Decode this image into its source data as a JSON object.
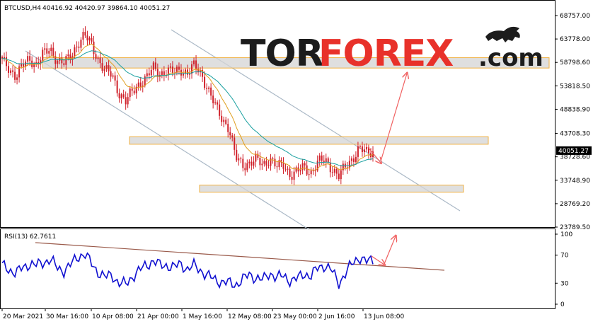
{
  "header": {
    "symbol": "BTCUSD,H4",
    "ohlc": "40416.92 40420.97 39864.10 40051.27",
    "rsi_label": "RSI(13) 62.7611"
  },
  "brand": {
    "part1": "TOR",
    "part2": "FOREX",
    "part3": ".com",
    "icon": "bull-icon"
  },
  "colors": {
    "candle": "#d0202a",
    "ema_fast": "#e0a020",
    "ema_slow": "#1aa0a0",
    "channel": "#aab8c6",
    "zone_fill": "#d4d4d4",
    "zone_border": "#f0b040",
    "rsi": "#1010d0",
    "rsi_trend": "#9a5a4a",
    "arrow": "#f06060",
    "price_box": "#000000"
  },
  "chart_data": [
    {
      "type": "candlestick",
      "title": "BTCUSD,H4",
      "ylim": [
        23789.5,
        71000
      ],
      "y_ticks": [
        "68757.00",
        "63778.00",
        "58798.60",
        "53818.50",
        "48838.90",
        "43708.30",
        "38728.60",
        "33748.90",
        "28769.20",
        "23789.50"
      ],
      "y_tick_values": [
        68757.0,
        63778.0,
        58798.6,
        53818.5,
        48838.9,
        43708.3,
        38728.6,
        33748.9,
        28769.2,
        23789.5
      ],
      "current_price": "40051.27",
      "current_price_value": 40051.27,
      "x_ticks": [
        "20 Mar 2021",
        "30 Mar 16:00",
        "10 Apr 08:00",
        "21 Apr 00:00",
        "1 May 16:00",
        "12 May 08:00",
        "23 May 00:00",
        "2 Jun 16:00",
        "13 Jun 08:00"
      ],
      "close_series": [
        59000,
        57500,
        56000,
        58000,
        59500,
        58500,
        60500,
        61500,
        59500,
        58500,
        60000,
        63000,
        64500,
        62500,
        59500,
        57000,
        56000,
        52500,
        50500,
        52500,
        54500,
        55500,
        57500,
        56500,
        57000,
        56500,
        57500,
        56500,
        58000,
        56500,
        53000,
        49500,
        47000,
        45000,
        38500,
        37000,
        37500,
        38000,
        37000,
        38500,
        36500,
        37000,
        35000,
        35500,
        36500,
        35500,
        37500,
        38000,
        36500,
        34500,
        36500,
        38500,
        40500,
        39500,
        40000
      ],
      "support_resistance_zones": [
        {
          "top": 59800,
          "bottom": 57600
        },
        {
          "top": 43000,
          "bottom": 41400
        },
        {
          "top": 32700,
          "bottom": 31200
        }
      ]
    },
    {
      "type": "line",
      "title": "RSI(13) 62.7611",
      "ylim": [
        0,
        100
      ],
      "y_ticks": [
        "100",
        "70",
        "30",
        "0"
      ],
      "y_tick_values": [
        100,
        70,
        30,
        0
      ],
      "current_value": 62.7611,
      "values": [
        55,
        50,
        44,
        52,
        58,
        55,
        60,
        64,
        52,
        48,
        56,
        68,
        72,
        58,
        46,
        38,
        42,
        30,
        28,
        40,
        48,
        56,
        62,
        55,
        56,
        52,
        58,
        50,
        55,
        48,
        40,
        35,
        32,
        30,
        28,
        35,
        42,
        38,
        34,
        45,
        38,
        40,
        34,
        36,
        44,
        40,
        52,
        56,
        48,
        30,
        44,
        58,
        68,
        60,
        63
      ]
    }
  ]
}
